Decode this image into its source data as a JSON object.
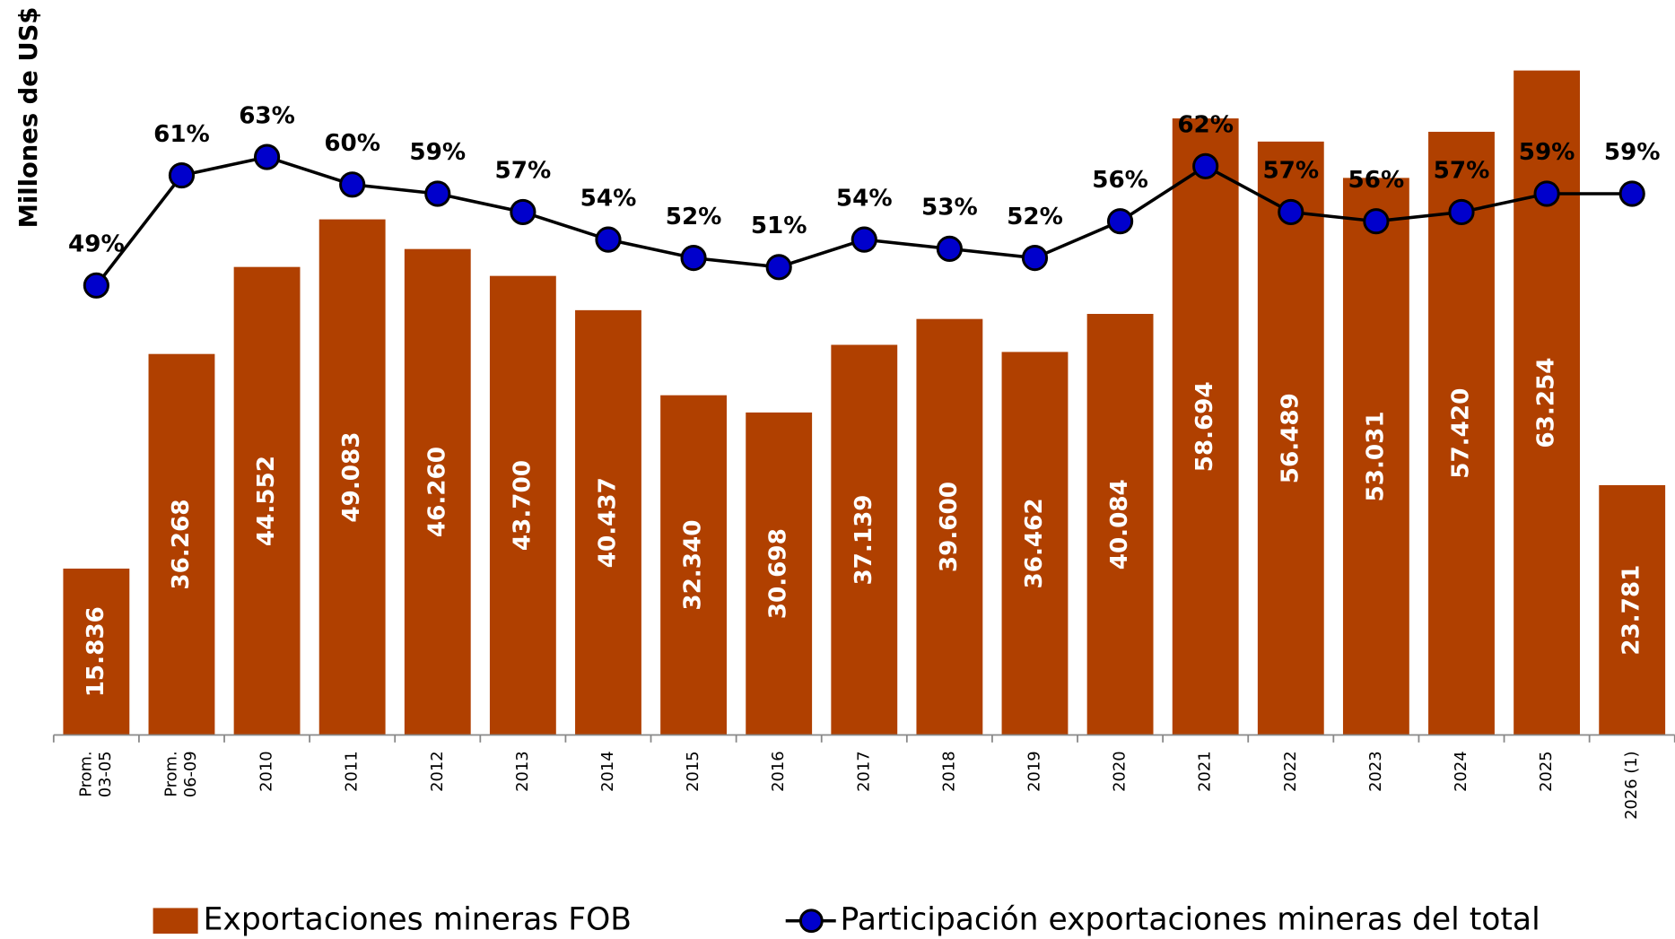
{
  "chart_data": {
    "type": "bar",
    "y_axis_label": "Millones de US$",
    "categories": [
      "Prom.\n03-05",
      "Prom.\n06-09",
      "2010",
      "2011",
      "2012",
      "2013",
      "2014",
      "2015",
      "2016",
      "2017",
      "2018",
      "2019",
      "2020",
      "2021",
      "2022",
      "2023",
      "2024",
      "2025",
      "2026 (1)"
    ],
    "series": [
      {
        "name": "Exportaciones mineras FOB",
        "type": "bar",
        "color": "#b04000",
        "values": [
          15836,
          36268,
          44552,
          49083,
          46260,
          43700,
          40437,
          32340,
          30698,
          37139,
          39600,
          36462,
          40084,
          58694,
          56489,
          53031,
          57420,
          63254,
          23781
        ],
        "value_labels": [
          "15.836",
          "36.268",
          "44.552",
          "49.083",
          "46.260",
          "43.700",
          "40.437",
          "32.340",
          "30.698",
          "37.139",
          "39.600",
          "36.462",
          "40.084",
          "58.694",
          "56.489",
          "53.031",
          "57.420",
          "63.254",
          "23.781"
        ]
      },
      {
        "name": "Participación exportaciones mineras del total",
        "type": "line",
        "axis": "y2",
        "color": "#0000cc",
        "values": [
          49,
          61,
          63,
          60,
          59,
          57,
          54,
          52,
          51,
          54,
          53,
          52,
          56,
          62,
          57,
          56,
          57,
          59,
          59
        ],
        "value_labels": [
          "49%",
          "61%",
          "63%",
          "60%",
          "59%",
          "57%",
          "54%",
          "52%",
          "51%",
          "54%",
          "53%",
          "52%",
          "56%",
          "62%",
          "57%",
          "56%",
          "57%",
          "59%",
          "59%"
        ]
      }
    ]
  }
}
